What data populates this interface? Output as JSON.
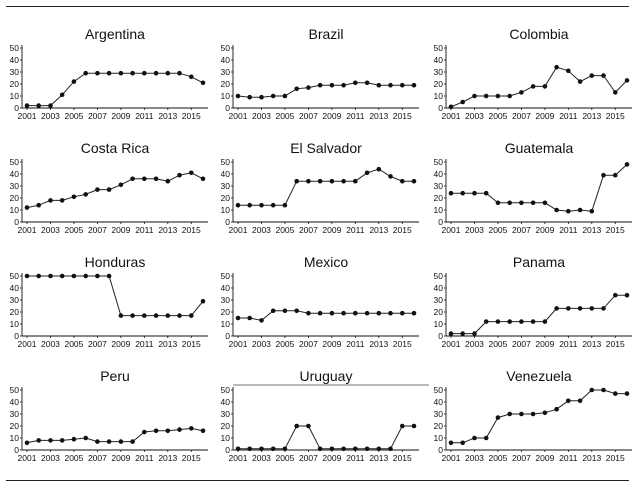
{
  "chart_data": [
    {
      "type": "line",
      "title": "Argentina",
      "x": [
        2001,
        2002,
        2003,
        2004,
        2005,
        2006,
        2007,
        2008,
        2009,
        2010,
        2011,
        2012,
        2013,
        2014,
        2015,
        2016
      ],
      "values": [
        2,
        2,
        2,
        11,
        22,
        29,
        29,
        29,
        29,
        29,
        29,
        29,
        29,
        29,
        26,
        21
      ],
      "ylim": [
        0,
        50
      ],
      "yticks": [
        0,
        10,
        20,
        30,
        40,
        50
      ],
      "xticks": [
        2001,
        2003,
        2005,
        2007,
        2009,
        2011,
        2013,
        2015
      ],
      "top_border": false
    },
    {
      "type": "line",
      "title": "Brazil",
      "x": [
        2001,
        2002,
        2003,
        2004,
        2005,
        2006,
        2007,
        2008,
        2009,
        2010,
        2011,
        2012,
        2013,
        2014,
        2015,
        2016
      ],
      "values": [
        10,
        9,
        9,
        10,
        10,
        16,
        17,
        19,
        19,
        19,
        21,
        21,
        19,
        19,
        19,
        19
      ],
      "ylim": [
        0,
        50
      ],
      "yticks": [
        0,
        10,
        20,
        30,
        40,
        50
      ],
      "xticks": [
        2001,
        2003,
        2005,
        2007,
        2009,
        2011,
        2013,
        2015
      ],
      "top_border": false
    },
    {
      "type": "line",
      "title": "Colombia",
      "x": [
        2001,
        2002,
        2003,
        2004,
        2005,
        2006,
        2007,
        2008,
        2009,
        2010,
        2011,
        2012,
        2013,
        2014,
        2015,
        2016
      ],
      "values": [
        1,
        5,
        10,
        10,
        10,
        10,
        13,
        18,
        18,
        34,
        31,
        22,
        27,
        27,
        13,
        23
      ],
      "ylim": [
        0,
        50
      ],
      "yticks": [
        0,
        10,
        20,
        30,
        40,
        50
      ],
      "xticks": [
        2001,
        2003,
        2005,
        2007,
        2009,
        2011,
        2013,
        2015
      ],
      "top_border": false
    },
    {
      "type": "line",
      "title": "Costa Rica",
      "x": [
        2001,
        2002,
        2003,
        2004,
        2005,
        2006,
        2007,
        2008,
        2009,
        2010,
        2011,
        2012,
        2013,
        2014,
        2015,
        2016
      ],
      "values": [
        12,
        14,
        18,
        18,
        21,
        23,
        27,
        27,
        31,
        36,
        36,
        36,
        34,
        39,
        41,
        36
      ],
      "ylim": [
        0,
        50
      ],
      "yticks": [
        0,
        10,
        20,
        30,
        40,
        50
      ],
      "xticks": [
        2001,
        2003,
        2005,
        2007,
        2009,
        2011,
        2013,
        2015
      ],
      "top_border": false
    },
    {
      "type": "line",
      "title": "El Salvador",
      "x": [
        2001,
        2002,
        2003,
        2004,
        2005,
        2006,
        2007,
        2008,
        2009,
        2010,
        2011,
        2012,
        2013,
        2014,
        2015,
        2016
      ],
      "values": [
        14,
        14,
        14,
        14,
        14,
        34,
        34,
        34,
        34,
        34,
        34,
        41,
        44,
        38,
        34,
        34
      ],
      "ylim": [
        0,
        50
      ],
      "yticks": [
        0,
        10,
        20,
        30,
        40,
        50
      ],
      "xticks": [
        2001,
        2003,
        2005,
        2007,
        2009,
        2011,
        2013,
        2015
      ],
      "top_border": false
    },
    {
      "type": "line",
      "title": "Guatemala",
      "x": [
        2001,
        2002,
        2003,
        2004,
        2005,
        2006,
        2007,
        2008,
        2009,
        2010,
        2011,
        2012,
        2013,
        2014,
        2015,
        2016
      ],
      "values": [
        24,
        24,
        24,
        24,
        16,
        16,
        16,
        16,
        16,
        10,
        9,
        10,
        9,
        39,
        39,
        48
      ],
      "ylim": [
        0,
        50
      ],
      "yticks": [
        0,
        10,
        20,
        30,
        40,
        50
      ],
      "xticks": [
        2001,
        2003,
        2005,
        2007,
        2009,
        2011,
        2013,
        2015
      ],
      "top_border": false
    },
    {
      "type": "line",
      "title": "Honduras",
      "x": [
        2001,
        2002,
        2003,
        2004,
        2005,
        2006,
        2007,
        2008,
        2009,
        2010,
        2011,
        2012,
        2013,
        2014,
        2015,
        2016
      ],
      "values": [
        50,
        50,
        50,
        50,
        50,
        50,
        50,
        50,
        17,
        17,
        17,
        17,
        17,
        17,
        17,
        29
      ],
      "ylim": [
        0,
        50
      ],
      "yticks": [
        0,
        10,
        20,
        30,
        40,
        50
      ],
      "xticks": [
        2001,
        2003,
        2005,
        2007,
        2009,
        2011,
        2013,
        2015
      ],
      "top_border": false
    },
    {
      "type": "line",
      "title": "Mexico",
      "x": [
        2001,
        2002,
        2003,
        2004,
        2005,
        2006,
        2007,
        2008,
        2009,
        2010,
        2011,
        2012,
        2013,
        2014,
        2015,
        2016
      ],
      "values": [
        15,
        15,
        13,
        21,
        21,
        21,
        19,
        19,
        19,
        19,
        19,
        19,
        19,
        19,
        19,
        19
      ],
      "ylim": [
        0,
        50
      ],
      "yticks": [
        0,
        10,
        20,
        30,
        40,
        50
      ],
      "xticks": [
        2001,
        2003,
        2005,
        2007,
        2009,
        2011,
        2013,
        2015
      ],
      "top_border": false
    },
    {
      "type": "line",
      "title": "Panama",
      "x": [
        2001,
        2002,
        2003,
        2004,
        2005,
        2006,
        2007,
        2008,
        2009,
        2010,
        2011,
        2012,
        2013,
        2014,
        2015,
        2016
      ],
      "values": [
        2,
        2,
        2,
        12,
        12,
        12,
        12,
        12,
        12,
        23,
        23,
        23,
        23,
        23,
        34,
        34
      ],
      "ylim": [
        0,
        50
      ],
      "yticks": [
        0,
        10,
        20,
        30,
        40,
        50
      ],
      "xticks": [
        2001,
        2003,
        2005,
        2007,
        2009,
        2011,
        2013,
        2015
      ],
      "top_border": false
    },
    {
      "type": "line",
      "title": "Peru",
      "x": [
        2001,
        2002,
        2003,
        2004,
        2005,
        2006,
        2007,
        2008,
        2009,
        2010,
        2011,
        2012,
        2013,
        2014,
        2015,
        2016
      ],
      "values": [
        6,
        8,
        8,
        8,
        9,
        10,
        7,
        7,
        7,
        7,
        15,
        16,
        16,
        17,
        18,
        16
      ],
      "ylim": [
        0,
        50
      ],
      "yticks": [
        0,
        10,
        20,
        30,
        40,
        50
      ],
      "xticks": [
        2001,
        2003,
        2005,
        2007,
        2009,
        2011,
        2013,
        2015
      ],
      "top_border": false
    },
    {
      "type": "line",
      "title": "Uruguay",
      "x": [
        2001,
        2002,
        2003,
        2004,
        2005,
        2006,
        2007,
        2008,
        2009,
        2010,
        2011,
        2012,
        2013,
        2014,
        2015,
        2016
      ],
      "values": [
        1,
        1,
        1,
        1,
        1,
        20,
        20,
        1,
        1,
        1,
        1,
        1,
        1,
        1,
        20,
        20
      ],
      "ylim": [
        0,
        50
      ],
      "yticks": [
        0,
        10,
        20,
        30,
        40,
        50
      ],
      "xticks": [
        2001,
        2003,
        2005,
        2007,
        2009,
        2011,
        2013,
        2015
      ],
      "top_border": true
    },
    {
      "type": "line",
      "title": "Venezuela",
      "x": [
        2001,
        2002,
        2003,
        2004,
        2005,
        2006,
        2007,
        2008,
        2009,
        2010,
        2011,
        2012,
        2013,
        2014,
        2015,
        2016
      ],
      "values": [
        6,
        6,
        10,
        10,
        27,
        30,
        30,
        30,
        31,
        34,
        41,
        41,
        50,
        50,
        47,
        47
      ],
      "ylim": [
        0,
        50
      ],
      "yticks": [
        0,
        10,
        20,
        30,
        40,
        50
      ],
      "xticks": [
        2001,
        2003,
        2005,
        2007,
        2009,
        2011,
        2013,
        2015
      ],
      "top_border": false
    }
  ]
}
